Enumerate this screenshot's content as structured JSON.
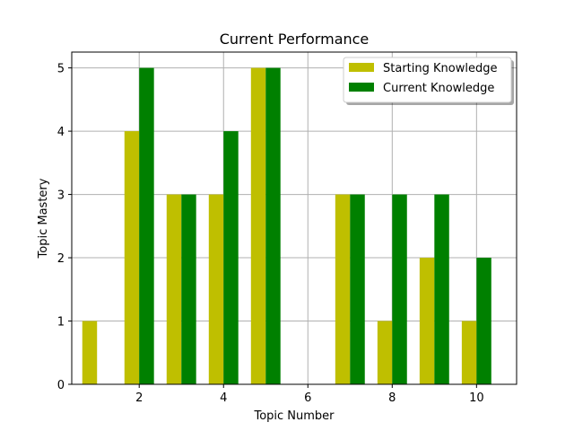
{
  "chart_data": {
    "type": "bar",
    "title": "Current Performance",
    "xlabel": "Topic Number",
    "ylabel": "Topic Mastery",
    "x": [
      1,
      2,
      3,
      4,
      5,
      6,
      7,
      8,
      9,
      10
    ],
    "series": [
      {
        "name": "Starting Knowledge",
        "color": "#bfbf00",
        "values": [
          1,
          4,
          3,
          3,
          5,
          0,
          3,
          1,
          2,
          1
        ]
      },
      {
        "name": "Current Knowledge",
        "color": "#008000",
        "values": [
          0,
          5,
          3,
          4,
          5,
          0,
          3,
          3,
          3,
          2
        ]
      }
    ],
    "xlim": [
      0.4,
      10.95
    ],
    "ylim": [
      0,
      5.25
    ],
    "xticks": [
      2,
      4,
      6,
      8,
      10
    ],
    "yticks": [
      0,
      1,
      2,
      3,
      4,
      5
    ],
    "grid": true,
    "legend_position": "top-right"
  }
}
